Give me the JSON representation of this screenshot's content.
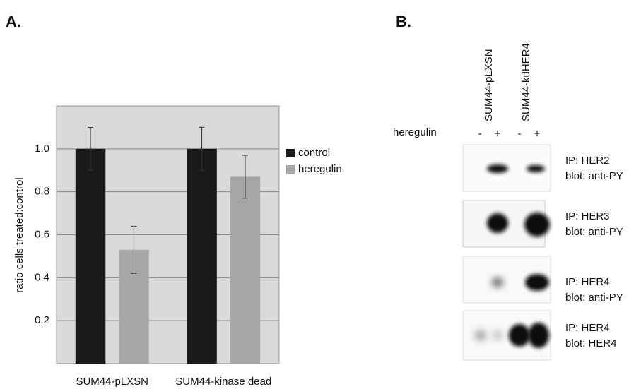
{
  "chart_data": {
    "type": "bar",
    "panel_label": "A.",
    "y_label": "ratio cells treated:control",
    "categories": [
      "SUM44-pLXSN",
      "SUM44-kinase dead"
    ],
    "series": [
      {
        "name": "control",
        "color": "#1a1a1a",
        "values": [
          1.0,
          1.0
        ],
        "errors": [
          0.1,
          0.1
        ]
      },
      {
        "name": "heregulin",
        "color": "#a6a6a6",
        "values": [
          0.53,
          0.87
        ],
        "errors": [
          0.11,
          0.1
        ]
      }
    ],
    "ylim": [
      0,
      1.2
    ],
    "yticks": [
      0.2,
      0.4,
      0.6,
      0.8,
      {
        "value": 1,
        "label": "1.0"
      }
    ],
    "grid": true,
    "legend": "right"
  },
  "panel_b": {
    "label": "B.",
    "columns": [
      "SUM44-pLXSN",
      "SUM44-kdHER4"
    ],
    "treatment": "heregulin",
    "lanes": [
      "-",
      "+",
      "-",
      "+"
    ],
    "blots": [
      {
        "ip": "IP: HER2",
        "blot": "blot: anti-PY"
      },
      {
        "ip": "IP: HER3",
        "blot": "blot: anti-PY"
      },
      {
        "ip": "IP: HER4",
        "blot": "blot: anti-PY"
      },
      {
        "ip": "IP: HER4",
        "blot": "blot: HER4"
      }
    ]
  }
}
